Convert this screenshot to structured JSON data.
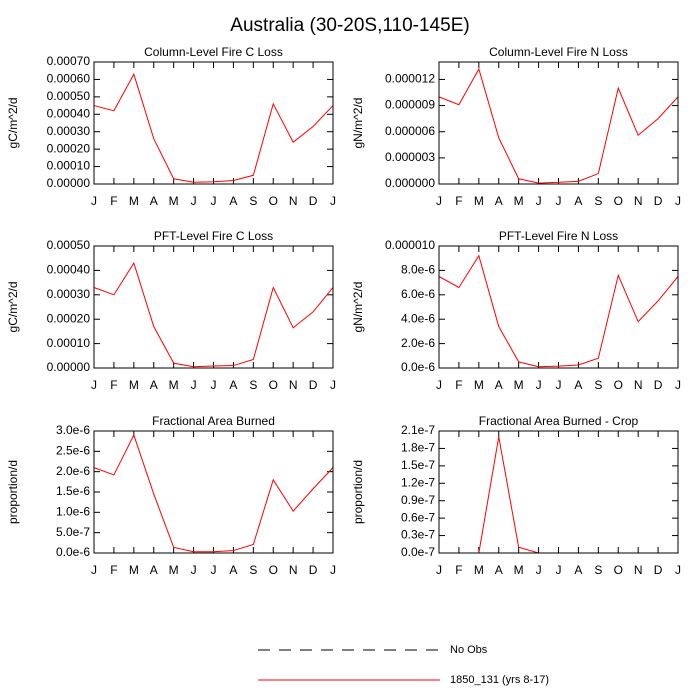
{
  "title": "Australia (30-20S,110-145E)",
  "legend": [
    {
      "name": "No Obs",
      "color": "#000000",
      "dashed": true
    },
    {
      "name": "1850_131 (yrs 8-17)",
      "color": "#ff0000",
      "dashed": false
    }
  ],
  "chart_data": [
    {
      "type": "line",
      "title": "Column-Level Fire C Loss",
      "y_label": "gC/m^2/d",
      "categories": [
        "J",
        "F",
        "M",
        "A",
        "M",
        "J",
        "J",
        "A",
        "S",
        "O",
        "N",
        "D",
        "J"
      ],
      "series": [
        {
          "color": "#ff0000",
          "values": [
            0.00045,
            0.00042,
            0.00063,
            0.00026,
            3e-05,
            1e-05,
            1.3e-05,
            2e-05,
            5e-05,
            0.00046,
            0.00024,
            0.00033,
            0.00045
          ]
        }
      ],
      "ylim": [
        0,
        0.0007
      ],
      "yticks": [
        {
          "value": 0,
          "label": "0.00000"
        },
        {
          "value": 0.0001,
          "label": "0.00010"
        },
        {
          "value": 0.0002,
          "label": "0.00020"
        },
        {
          "value": 0.0003,
          "label": "0.00030"
        },
        {
          "value": 0.0004,
          "label": "0.00040"
        },
        {
          "value": 0.0005,
          "label": "0.00050"
        },
        {
          "value": 0.0006,
          "label": "0.00060"
        },
        {
          "value": 0.0007,
          "label": "0.00070"
        }
      ]
    },
    {
      "type": "line",
      "title": "Column-Level Fire N Loss",
      "y_label": "gN/m^2/d",
      "categories": [
        "J",
        "F",
        "M",
        "A",
        "M",
        "J",
        "J",
        "A",
        "S",
        "O",
        "N",
        "D",
        "J"
      ],
      "series": [
        {
          "color": "#ff0000",
          "values": [
            1e-05,
            9.1e-06,
            1.32e-05,
            5.3e-06,
            6e-07,
            1e-07,
            2e-07,
            3e-07,
            1.2e-06,
            1.1e-05,
            5.6e-06,
            7.5e-06,
            1e-05
          ]
        }
      ],
      "ylim": [
        0,
        1.4e-05
      ],
      "yticks": [
        {
          "value": 0,
          "label": "0.000000"
        },
        {
          "value": 3e-06,
          "label": "0.000003"
        },
        {
          "value": 6e-06,
          "label": "0.000006"
        },
        {
          "value": 9e-06,
          "label": "0.000009"
        },
        {
          "value": 1.2e-05,
          "label": "0.000012"
        }
      ]
    },
    {
      "type": "line",
      "title": "PFT-Level Fire C Loss",
      "y_label": "gC/m^2/d",
      "categories": [
        "J",
        "F",
        "M",
        "A",
        "M",
        "J",
        "J",
        "A",
        "S",
        "O",
        "N",
        "D",
        "J"
      ],
      "series": [
        {
          "color": "#ff0000",
          "values": [
            0.00033,
            0.0003,
            0.00043,
            0.00017,
            2e-05,
            5e-06,
            8e-06,
            1e-05,
            3.5e-05,
            0.00033,
            0.000165,
            0.00023,
            0.00033
          ]
        }
      ],
      "ylim": [
        0,
        0.0005
      ],
      "yticks": [
        {
          "value": 0,
          "label": "0.00000"
        },
        {
          "value": 0.0001,
          "label": "0.00010"
        },
        {
          "value": 0.0002,
          "label": "0.00020"
        },
        {
          "value": 0.0003,
          "label": "0.00030"
        },
        {
          "value": 0.0004,
          "label": "0.00040"
        },
        {
          "value": 0.0005,
          "label": "0.00050"
        }
      ]
    },
    {
      "type": "line",
      "title": "PFT-Level Fire N Loss",
      "y_label": "gN/m^2/d",
      "categories": [
        "J",
        "F",
        "M",
        "A",
        "M",
        "J",
        "J",
        "A",
        "S",
        "O",
        "N",
        "D",
        "J"
      ],
      "series": [
        {
          "color": "#ff0000",
          "values": [
            7.5e-06,
            6.6e-06,
            9.2e-06,
            3.4e-06,
            5e-07,
            1e-07,
            1.5e-07,
            2.5e-07,
            8e-07,
            7.6e-06,
            3.8e-06,
            5.5e-06,
            7.5e-06
          ]
        }
      ],
      "ylim": [
        0,
        1e-05
      ],
      "yticks": [
        {
          "value": 0,
          "label": "0.0e-6"
        },
        {
          "value": 2e-06,
          "label": "2.0e-6"
        },
        {
          "value": 4e-06,
          "label": "4.0e-6"
        },
        {
          "value": 6e-06,
          "label": "6.0e-6"
        },
        {
          "value": 8e-06,
          "label": "8.0e-6"
        },
        {
          "value": 1e-05,
          "label": "0.000010"
        }
      ]
    },
    {
      "type": "line",
      "title": "Fractional Area Burned",
      "y_label": "proportion/d",
      "categories": [
        "J",
        "F",
        "M",
        "A",
        "M",
        "J",
        "J",
        "A",
        "S",
        "O",
        "N",
        "D",
        "J"
      ],
      "series": [
        {
          "color": "#ff0000",
          "values": [
            2.1e-06,
            1.92e-06,
            2.9e-06,
            1.45e-06,
            1.4e-07,
            3e-08,
            3e-08,
            6e-08,
            2.1e-07,
            1.8e-06,
            1.03e-06,
            1.58e-06,
            2.1e-06
          ]
        }
      ],
      "ylim": [
        0,
        3e-06
      ],
      "yticks": [
        {
          "value": 0,
          "label": "0.0e-6"
        },
        {
          "value": 5e-07,
          "label": "5.0e-7"
        },
        {
          "value": 1e-06,
          "label": "1.0e-6"
        },
        {
          "value": 1.5e-06,
          "label": "1.5e-6"
        },
        {
          "value": 2e-06,
          "label": "2.0e-6"
        },
        {
          "value": 2.5e-06,
          "label": "2.5e-6"
        },
        {
          "value": 3e-06,
          "label": "3.0e-6"
        }
      ]
    },
    {
      "type": "line",
      "title": "Fractional Area Burned - Crop",
      "y_label": "proportion/d",
      "categories": [
        "J",
        "F",
        "M",
        "A",
        "M",
        "J",
        "J",
        "A",
        "S",
        "O",
        "N",
        "D",
        "J"
      ],
      "series": [
        {
          "color": "#ff0000",
          "values": [
            0,
            0,
            0,
            2e-07,
            1e-08,
            0,
            0,
            0,
            0,
            0,
            0,
            0,
            0
          ]
        }
      ],
      "ylim": [
        0,
        2.1e-07
      ],
      "yticks": [
        {
          "value": 0,
          "label": "0.0e-7"
        },
        {
          "value": 3e-08,
          "label": "0.3e-7"
        },
        {
          "value": 6e-08,
          "label": "0.6e-7"
        },
        {
          "value": 9e-08,
          "label": "0.9e-7"
        },
        {
          "value": 1.2e-07,
          "label": "1.2e-7"
        },
        {
          "value": 1.5e-07,
          "label": "1.5e-7"
        },
        {
          "value": 1.8e-07,
          "label": "1.8e-7"
        },
        {
          "value": 2.1e-07,
          "label": "2.1e-7"
        }
      ]
    }
  ]
}
